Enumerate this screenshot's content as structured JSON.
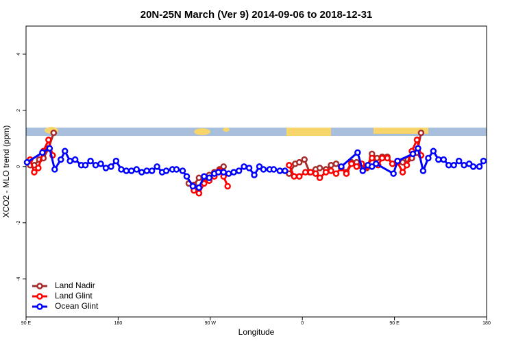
{
  "chart_data": {
    "type": "line",
    "title": "20N-25N March (Ver 9)   2014-09-06 to 2018-12-31",
    "x_label": "Longitude",
    "y_label": "XCO2 - MLO trend (ppm)",
    "xlim": [
      90,
      540
    ],
    "ylim": [
      -5.35,
      5
    ],
    "xticks": [
      {
        "value": 90,
        "label": "90 E"
      },
      180,
      {
        "value": 270,
        "label": "90 W"
      },
      {
        "value": 360,
        "label": "0"
      },
      {
        "value": 450,
        "label": "90 E"
      },
      {
        "value": 540,
        "label": "180"
      }
    ],
    "yticks": [
      -4,
      -2,
      0,
      2,
      4
    ],
    "legend": "bottomleft",
    "series": [
      {
        "name": "Land Nadir",
        "color": "#a52a2a",
        "x": [
          94,
          98,
          103,
          107,
          112,
          117,
          180,
          249,
          254,
          259,
          264,
          269,
          274,
          279,
          283,
          320,
          347,
          353,
          357,
          362,
          367,
          373,
          377,
          383,
          388,
          393,
          398,
          403,
          408,
          413,
          418,
          423,
          428,
          433,
          438,
          443,
          448,
          453,
          458,
          463,
          467,
          472,
          476
        ],
        "values": [
          0.05,
          0.05,
          0.25,
          0.3,
          0.65,
          1.2,
          null,
          -0.6,
          -0.65,
          -0.4,
          -0.4,
          -0.3,
          -0.2,
          -0.1,
          0,
          null,
          -0.25,
          0.1,
          0.15,
          0.25,
          -0.2,
          -0.1,
          -0.05,
          -0.1,
          0.05,
          0.1,
          -0.05,
          -0.2,
          0.15,
          0.15,
          0,
          -0.05,
          0.45,
          0.3,
          0.35,
          0.35,
          0.1,
          0.2,
          0.15,
          0.25,
          0.3,
          0.5,
          1.2
        ]
      },
      {
        "name": "Land Glint",
        "color": "#ff0000",
        "x": [
          94,
          98,
          102,
          107,
          112,
          116,
          180,
          254,
          259,
          264,
          269,
          274,
          279,
          283,
          287,
          320,
          347,
          352,
          357,
          363,
          368,
          373,
          377,
          383,
          388,
          393,
          398,
          403,
          408,
          413,
          418,
          423,
          428,
          434,
          438,
          443,
          448,
          453,
          458,
          462,
          467,
          472,
          476
        ],
        "values": [
          0.25,
          -0.2,
          -0.05,
          0.55,
          0.95,
          0.4,
          null,
          -0.85,
          -0.95,
          -0.6,
          -0.5,
          -0.35,
          -0.15,
          -0.35,
          -0.7,
          null,
          0.05,
          -0.35,
          -0.35,
          -0.2,
          -0.2,
          -0.25,
          -0.4,
          -0.2,
          -0.15,
          -0.25,
          -0.05,
          -0.25,
          0.1,
          0,
          0.1,
          0,
          0.3,
          0.05,
          0.3,
          0.3,
          0.1,
          0.15,
          -0.2,
          0.05,
          0.55,
          0.95,
          0.4
        ]
      },
      {
        "name": "Ocean Glint",
        "color": "#0000ff",
        "x": [
          91,
          106,
          113,
          118,
          124,
          128,
          133,
          138,
          144,
          148,
          153,
          158,
          163,
          168,
          173,
          178,
          183,
          188,
          193,
          198,
          203,
          208,
          213,
          218,
          223,
          227,
          233,
          237,
          243,
          247,
          253,
          259,
          264,
          269,
          274,
          278,
          283,
          288,
          293,
          298,
          303,
          308,
          313,
          318,
          322,
          328,
          332,
          338,
          343,
          370,
          398,
          414,
          419,
          424,
          428,
          432,
          449,
          453,
          468,
          473,
          478,
          483,
          488,
          493,
          498,
          503,
          508,
          513,
          518,
          523,
          527,
          533,
          537
        ],
        "values": [
          0.15,
          0.5,
          0.65,
          -0.1,
          0.25,
          0.55,
          0.2,
          0.25,
          0.05,
          0.05,
          0.2,
          0.05,
          0.1,
          -0.05,
          0,
          0.2,
          -0.1,
          -0.15,
          -0.15,
          -0.1,
          -0.2,
          -0.15,
          -0.15,
          0,
          -0.2,
          -0.15,
          -0.1,
          -0.1,
          -0.15,
          -0.35,
          -0.7,
          -0.75,
          -0.35,
          -0.4,
          -0.25,
          -0.2,
          -0.2,
          -0.25,
          -0.2,
          -0.15,
          0,
          -0.05,
          -0.3,
          0,
          -0.1,
          -0.1,
          -0.1,
          -0.15,
          -0.15,
          null,
          0,
          0.5,
          -0.15,
          0.05,
          0,
          0.1,
          -0.25,
          0.2,
          0.45,
          0.65,
          -0.15,
          0.3,
          0.55,
          0.25,
          0.25,
          0.05,
          0.05,
          0.2,
          0.05,
          0.1,
          0,
          0,
          0.2
        ]
      }
    ]
  }
}
